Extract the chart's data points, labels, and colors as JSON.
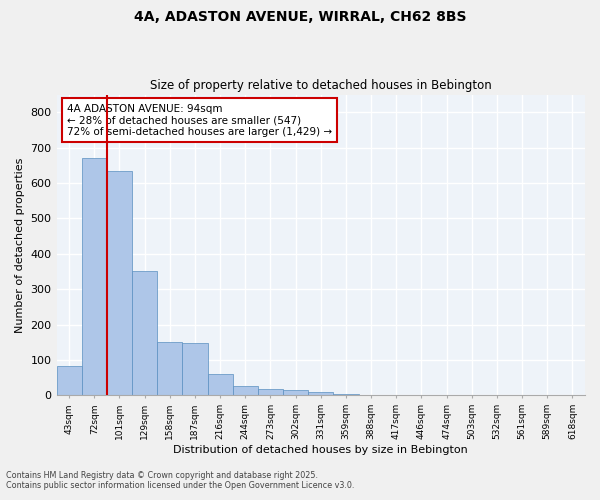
{
  "title_line1": "4A, ADASTON AVENUE, WIRRAL, CH62 8BS",
  "title_line2": "Size of property relative to detached houses in Bebington",
  "xlabel": "Distribution of detached houses by size in Bebington",
  "ylabel": "Number of detached properties",
  "categories": [
    "43sqm",
    "72sqm",
    "101sqm",
    "129sqm",
    "158sqm",
    "187sqm",
    "216sqm",
    "244sqm",
    "273sqm",
    "302sqm",
    "331sqm",
    "359sqm",
    "388sqm",
    "417sqm",
    "446sqm",
    "474sqm",
    "503sqm",
    "532sqm",
    "561sqm",
    "589sqm",
    "618sqm"
  ],
  "values": [
    82,
    670,
    633,
    352,
    150,
    148,
    60,
    28,
    19,
    15,
    10,
    4,
    0,
    2,
    0,
    0,
    0,
    0,
    0,
    0,
    0
  ],
  "bar_color": "#aec6e8",
  "bar_edgecolor": "#5a8fc0",
  "vline_x": 1.5,
  "vline_color": "#cc0000",
  "annotation_text": "4A ADASTON AVENUE: 94sqm\n← 28% of detached houses are smaller (547)\n72% of semi-detached houses are larger (1,429) →",
  "annotation_box_edgecolor": "#cc0000",
  "ylim": [
    0,
    850
  ],
  "yticks": [
    0,
    100,
    200,
    300,
    400,
    500,
    600,
    700,
    800
  ],
  "background_color": "#eef3f9",
  "grid_color": "#ffffff",
  "fig_background": "#f0f0f0",
  "footer_line1": "Contains HM Land Registry data © Crown copyright and database right 2025.",
  "footer_line2": "Contains public sector information licensed under the Open Government Licence v3.0."
}
